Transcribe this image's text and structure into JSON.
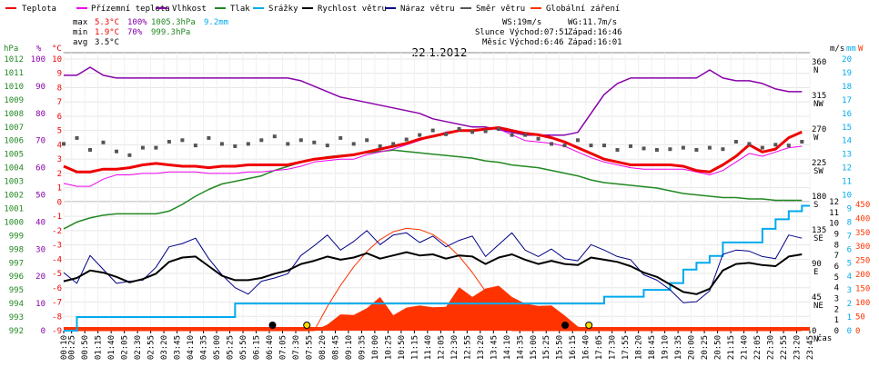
{
  "legend": [
    {
      "label": "Teplota",
      "color": "#ee0000"
    },
    {
      "label": "Přízemní teplota",
      "color": "#ee00ee"
    },
    {
      "label": "Vlhkost",
      "color": "#8800aa"
    },
    {
      "label": "Tlak",
      "color": "#228822"
    },
    {
      "label": "Srážky",
      "color": "#00aaee"
    },
    {
      "label": "Rychlost větru",
      "color": "#000000"
    },
    {
      "label": "Náraz větru",
      "color": "#000088"
    },
    {
      "label": "Směr větru",
      "color": "#555555"
    },
    {
      "label": "Globální záření",
      "color": "#ff3300"
    }
  ],
  "stats": {
    "max": {
      "label": "max",
      "temp": "5.3°C",
      "hum": "100%",
      "press": "1005.3hPa",
      "rain": "9.2mm"
    },
    "min": {
      "label": "min",
      "temp": "1.9°C",
      "hum": "70%",
      "press": "999.3hPa"
    },
    "avg": {
      "label": "avg",
      "temp": "3.5°C"
    }
  },
  "wind_info": {
    "ws": "WS:19m/s",
    "wg": "WG:11.7m/s"
  },
  "sun": {
    "label": "Slunce",
    "rise": "Východ:07:51",
    "set": "Západ:16:46"
  },
  "moon": {
    "label": "Měsíc",
    "rise": "Východ:6:46",
    "set": "Západ:16:01"
  },
  "chart_data": {
    "type": "line",
    "title": "22.1.2012",
    "xlabel": "čas",
    "x": [
      "00:10",
      "00:35",
      "01:00",
      "01:25",
      "01:50",
      "02:15",
      "02:40",
      "03:05",
      "03:30",
      "03:55",
      "04:20",
      "04:45",
      "05:10",
      "05:35",
      "06:00",
      "06:25",
      "06:50",
      "07:15",
      "07:40",
      "08:05",
      "08:30",
      "08:55",
      "09:20",
      "09:45",
      "10:10",
      "10:35",
      "11:00",
      "11:25",
      "11:50",
      "12:15",
      "12:40",
      "13:05",
      "13:30",
      "13:55",
      "14:20",
      "14:45",
      "15:10",
      "15:35",
      "16:00",
      "16:25",
      "16:50",
      "17:15",
      "17:40",
      "18:05",
      "18:30",
      "18:55",
      "19:20",
      "19:45",
      "20:10",
      "20:35",
      "21:00",
      "21:25",
      "21:50",
      "22:15",
      "22:40",
      "23:05",
      "23:30"
    ],
    "x_tick_labels": [
      "00:10",
      "00:25",
      "00:50",
      "01:15",
      "01:40",
      "02:05",
      "02:30",
      "02:55",
      "03:20",
      "03:45",
      "04:10",
      "04:35",
      "05:00",
      "05:25",
      "05:50",
      "06:15",
      "06:40",
      "07:05",
      "07:30",
      "07:55",
      "08:20",
      "08:45",
      "09:10",
      "09:35",
      "10:00",
      "10:25",
      "10:50",
      "11:15",
      "11:40",
      "12:05",
      "12:30",
      "12:55",
      "13:20",
      "13:45",
      "14:10",
      "14:35",
      "15:00",
      "15:25",
      "15:50",
      "16:15",
      "16:40",
      "17:05",
      "17:30",
      "17:55",
      "18:20",
      "18:45",
      "19:10",
      "19:35",
      "20:00",
      "20:25",
      "20:50",
      "21:15",
      "21:40",
      "22:05",
      "22:30",
      "22:55",
      "23:20",
      "23:45"
    ],
    "axes": {
      "pressure_hpa": {
        "label": "hPa",
        "range": [
          992,
          1013
        ],
        "ticks": [
          "992",
          "993",
          "994",
          "995",
          "996",
          "997",
          "998",
          "999",
          "1000",
          "1001",
          "1002",
          "1003",
          "1004",
          "1005",
          "1006",
          "1007",
          "1008",
          "1009",
          "1010",
          "1011",
          "1012"
        ]
      },
      "humidity_pct": {
        "label": "%",
        "range": [
          0,
          100
        ],
        "ticks": [
          "0",
          "10",
          "20",
          "30",
          "40",
          "50",
          "60",
          "70",
          "80",
          "90",
          "100"
        ]
      },
      "temperature_c": {
        "label": "°C",
        "range": [
          -9,
          10
        ],
        "ticks": [
          "-9",
          "-8",
          "-7",
          "-6",
          "-5",
          "-4",
          "-3",
          "-2",
          "-1",
          "0",
          "1",
          "2",
          "3",
          "4",
          "5",
          "6",
          "7",
          "8",
          "9",
          "10"
        ]
      },
      "direction_deg": {
        "ticks": [
          [
            "0",
            "N"
          ],
          [
            "45",
            "NE"
          ],
          [
            "90",
            "E"
          ],
          [
            "135",
            "SE"
          ],
          [
            "180",
            "S"
          ],
          [
            "225",
            "SW"
          ],
          [
            "270",
            "W"
          ],
          [
            "315",
            "NW"
          ],
          [
            "360",
            "N"
          ]
        ]
      },
      "wind_ms": {
        "label": "m/s",
        "range": [
          0,
          12
        ],
        "ticks": [
          "0",
          "1",
          "2",
          "3",
          "4",
          "5",
          "6",
          "7",
          "8",
          "9",
          "10",
          "11",
          "12"
        ]
      },
      "rain_mm": {
        "label": "mm",
        "range": [
          0,
          20
        ],
        "ticks": [
          "0",
          "1",
          "2",
          "3",
          "4",
          "5",
          "6",
          "7",
          "8",
          "9",
          "10",
          "11",
          "12",
          "13",
          "14",
          "15",
          "16",
          "17",
          "18",
          "19",
          "20"
        ]
      },
      "radiation_w": {
        "label": "W",
        "range": [
          0,
          450
        ],
        "ticks": [
          "0",
          "50",
          "100",
          "150",
          "200",
          "250",
          "300",
          "350",
          "400",
          "450"
        ]
      }
    },
    "series": [
      {
        "name": "Teplota",
        "axis": "temperature_c",
        "values": [
          2.5,
          2.1,
          2.1,
          2.3,
          2.3,
          2.4,
          2.6,
          2.7,
          2.6,
          2.5,
          2.5,
          2.4,
          2.5,
          2.5,
          2.6,
          2.6,
          2.6,
          2.6,
          2.8,
          3.0,
          3.1,
          3.2,
          3.3,
          3.5,
          3.7,
          3.9,
          4.1,
          4.4,
          4.6,
          4.8,
          5.0,
          5.0,
          5.1,
          5.2,
          5.0,
          4.8,
          4.7,
          4.5,
          4.2,
          3.8,
          3.4,
          3.0,
          2.8,
          2.6,
          2.6,
          2.6,
          2.6,
          2.5,
          2.2,
          2.1,
          2.6,
          3.2,
          4.0,
          3.5,
          3.7,
          4.5,
          4.9
        ]
      },
      {
        "name": "Přízemní teplota",
        "axis": "temperature_c",
        "values": [
          1.3,
          1.1,
          1.1,
          1.6,
          1.9,
          1.9,
          2.0,
          2.0,
          2.1,
          2.1,
          2.1,
          2.0,
          2.0,
          2.0,
          2.1,
          2.1,
          2.2,
          2.3,
          2.5,
          2.8,
          2.9,
          3.0,
          3.0,
          3.3,
          3.5,
          3.7,
          4.0,
          4.3,
          4.6,
          4.9,
          5.0,
          5.0,
          5.1,
          5.1,
          4.7,
          4.3,
          4.2,
          4.1,
          3.9,
          3.5,
          3.1,
          2.8,
          2.6,
          2.4,
          2.3,
          2.3,
          2.3,
          2.3,
          2.1,
          1.9,
          2.2,
          2.8,
          3.4,
          3.2,
          3.5,
          3.8,
          3.9
        ]
      },
      {
        "name": "Vlhkost",
        "axis": "humidity_pct",
        "values": [
          94,
          94,
          97,
          94,
          93,
          93,
          93,
          93,
          93,
          93,
          93,
          93,
          93,
          93,
          93,
          93,
          93,
          93,
          92,
          90,
          88,
          86,
          85,
          84,
          83,
          82,
          81,
          80,
          78,
          77,
          76,
          75,
          75,
          74,
          73,
          72,
          72,
          72,
          72,
          73,
          80,
          87,
          91,
          93,
          93,
          93,
          93,
          93,
          93,
          96,
          93,
          92,
          92,
          91,
          89,
          88,
          88
        ]
      },
      {
        "name": "Tlak",
        "axis": "pressure_hpa",
        "values": [
          999.5,
          1000.0,
          1000.3,
          1000.5,
          1000.6,
          1000.6,
          1000.6,
          1000.6,
          1000.8,
          1001.3,
          1001.9,
          1002.4,
          1002.8,
          1003.0,
          1003.2,
          1003.4,
          1003.8,
          1004.1,
          1004.4,
          1004.6,
          1004.8,
          1004.9,
          1005.0,
          1005.1,
          1005.2,
          1005.3,
          1005.2,
          1005.1,
          1005.0,
          1004.9,
          1004.8,
          1004.7,
          1004.5,
          1004.4,
          1004.2,
          1004.1,
          1004.0,
          1003.8,
          1003.6,
          1003.4,
          1003.1,
          1002.9,
          1002.8,
          1002.7,
          1002.6,
          1002.5,
          1002.3,
          1002.1,
          1002.0,
          1001.9,
          1001.8,
          1001.8,
          1001.7,
          1001.7,
          1001.6,
          1001.6,
          1001.6
        ]
      },
      {
        "name": "Srážky",
        "axis": "rain_mm",
        "values": [
          0,
          1,
          1,
          1,
          1,
          1,
          1,
          1,
          1,
          1,
          1,
          1,
          1,
          2,
          2,
          2,
          2,
          2,
          2,
          2,
          2,
          2,
          2,
          2,
          2,
          2,
          2,
          2,
          2,
          2,
          2,
          2,
          2,
          2,
          2,
          2,
          2,
          2,
          2,
          2,
          2,
          2.5,
          2.5,
          2.5,
          3.0,
          3.0,
          3.5,
          4.5,
          5.0,
          5.5,
          6.5,
          6.5,
          6.5,
          7.5,
          8.2,
          8.8,
          9.2
        ]
      },
      {
        "name": "Rychlost větru",
        "axis": "wind_ms",
        "values": [
          4.6,
          4.9,
          5.6,
          5.4,
          5.0,
          4.5,
          4.8,
          5.3,
          6.4,
          6.8,
          6.9,
          6.0,
          5.1,
          4.7,
          4.7,
          4.9,
          5.3,
          5.6,
          6.2,
          6.5,
          6.9,
          6.6,
          6.8,
          7.2,
          6.7,
          7.0,
          7.3,
          7.0,
          7.1,
          6.7,
          7.0,
          6.9,
          6.2,
          6.8,
          7.1,
          6.6,
          6.2,
          6.5,
          6.2,
          6.1,
          6.8,
          6.6,
          6.4,
          6.0,
          5.4,
          5.0,
          4.3,
          3.6,
          3.4,
          3.9,
          5.6,
          6.2,
          6.3,
          6.1,
          6.0,
          6.9,
          7.1
        ]
      },
      {
        "name": "Náraz větru",
        "axis": "wind_ms",
        "values": [
          5.4,
          4.4,
          7.0,
          5.7,
          4.4,
          4.6,
          4.7,
          5.9,
          7.8,
          8.1,
          8.6,
          6.7,
          5.2,
          4.0,
          3.4,
          4.6,
          4.9,
          5.3,
          7.0,
          7.9,
          8.9,
          7.5,
          8.3,
          9.3,
          8.0,
          8.9,
          9.1,
          8.2,
          8.8,
          7.8,
          8.4,
          8.8,
          6.9,
          8.0,
          9.1,
          7.5,
          6.9,
          7.6,
          6.7,
          6.5,
          8.0,
          7.5,
          6.9,
          6.6,
          5.2,
          4.7,
          3.8,
          2.6,
          2.7,
          3.7,
          7.1,
          7.5,
          7.4,
          6.9,
          6.7,
          8.9,
          8.6
        ]
      },
      {
        "name": "Směr větru",
        "axis": "direction_deg",
        "values": [
          250,
          258,
          242,
          252,
          240,
          235,
          245,
          245,
          253,
          255,
          248,
          258,
          250,
          247,
          250,
          255,
          260,
          250,
          255,
          252,
          248,
          258,
          250,
          255,
          247,
          250,
          256,
          262,
          268,
          263,
          270,
          266,
          267,
          270,
          262,
          262,
          257,
          250,
          248,
          255,
          248,
          248,
          242,
          247,
          244,
          242,
          243,
          245,
          242,
          245,
          243,
          253,
          250,
          245,
          249,
          248,
          253
        ]
      },
      {
        "name": "Globální záření",
        "axis": "radiation_w",
        "values": [
          0,
          0,
          0,
          0,
          0,
          0,
          0,
          0,
          0,
          0,
          0,
          0,
          0,
          0,
          0,
          0,
          0,
          0,
          0,
          0,
          22,
          58,
          56,
          80,
          120,
          55,
          82,
          90,
          83,
          85,
          155,
          120,
          150,
          160,
          120,
          96,
          88,
          90,
          54,
          15,
          0,
          0,
          0,
          0,
          0,
          0,
          0,
          0,
          0,
          0,
          0,
          0,
          0,
          0,
          0,
          0,
          0
        ]
      },
      {
        "name": "clear_sky_radiation",
        "axis": "radiation_w",
        "values": [
          0,
          0,
          0,
          0,
          0,
          0,
          0,
          0,
          0,
          0,
          0,
          0,
          0,
          0,
          0,
          0,
          0,
          0,
          0,
          0,
          86,
          161,
          227,
          282,
          324,
          352,
          364,
          360,
          342,
          310,
          265,
          207,
          140,
          68,
          0,
          0,
          0,
          0,
          0,
          0,
          0,
          0,
          0,
          0,
          0,
          0,
          0,
          0,
          0,
          0,
          0,
          0,
          0,
          0,
          0,
          0,
          0
        ]
      }
    ],
    "markers": [
      {
        "name": "moonrise",
        "time": "06:46"
      },
      {
        "name": "sunrise",
        "time": "07:51"
      },
      {
        "name": "moonset",
        "time": "16:01"
      },
      {
        "name": "sunset",
        "time": "16:46"
      }
    ]
  }
}
